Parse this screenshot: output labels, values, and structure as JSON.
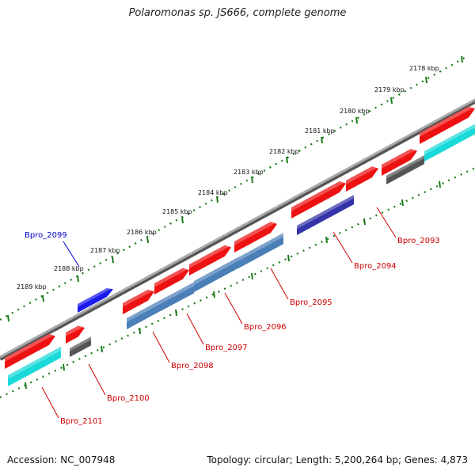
{
  "title": "Polaromonas sp. JS666, complete genome",
  "accession": "Accession: NC_007948",
  "stats": "Topology: circular; Length: 5,200,264 bp; Genes: 4,873",
  "colors": {
    "backbone": "#808080",
    "tick_dots": "#1a7a1a",
    "cds": "#ee1111",
    "label_red": "#cc0000",
    "label_blue": "#0000cc"
  },
  "scale_labels": [
    "2178 kbp",
    "2179 kbp",
    "2180 kbp",
    "2181 kbp",
    "2182 kbp",
    "2183 kbp",
    "2184 kbp",
    "2185 kbp",
    "2186 kbp",
    "2187 kbp",
    "2188 kbp",
    "2189 kbp"
  ],
  "gene_labels": [
    "Bpro_2093",
    "Bpro_2094",
    "Bpro_2095",
    "Bpro_2096",
    "Bpro_2097",
    "Bpro_2098",
    "Bpro_2099",
    "Bpro_2100",
    "Bpro_2101"
  ]
}
